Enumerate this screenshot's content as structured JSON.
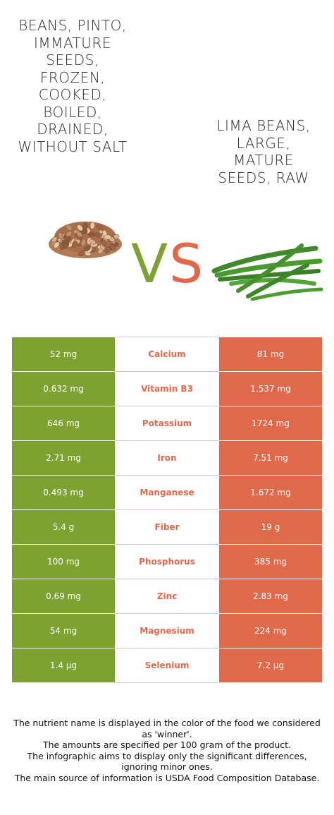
{
  "left_food": {
    "name": "Beans, pinto, immature seeds, frozen, cooked, boiled, drained, without salt",
    "color": "#7da232"
  },
  "right_food": {
    "name": "Lima beans, large, mature seeds, raw",
    "color": "#e0694c"
  },
  "vs": {
    "v": "V",
    "s": "S"
  },
  "nutrients": [
    {
      "name": "Calcium",
      "left": "52 mg",
      "right": "81 mg",
      "winner": "right"
    },
    {
      "name": "Vitamin B3",
      "left": "0.632 mg",
      "right": "1.537 mg",
      "winner": "right"
    },
    {
      "name": "Potassium",
      "left": "646 mg",
      "right": "1724 mg",
      "winner": "right"
    },
    {
      "name": "Iron",
      "left": "2.71 mg",
      "right": "7.51 mg",
      "winner": "right"
    },
    {
      "name": "Manganese",
      "left": "0.493 mg",
      "right": "1.672 mg",
      "winner": "right"
    },
    {
      "name": "Fiber",
      "left": "5.4 g",
      "right": "19 g",
      "winner": "right"
    },
    {
      "name": "Phosphorus",
      "left": "100 mg",
      "right": "385 mg",
      "winner": "right"
    },
    {
      "name": "Zinc",
      "left": "0.69 mg",
      "right": "2.83 mg",
      "winner": "right"
    },
    {
      "name": "Magnesium",
      "left": "54 mg",
      "right": "224 mg",
      "winner": "right"
    },
    {
      "name": "Selenium",
      "left": "1.4 µg",
      "right": "7.2 µg",
      "winner": "right"
    }
  ],
  "footnotes": [
    "The nutrient name is displayed in the color of the food we considered as 'winner'.",
    "The amounts are specified per 100 gram of the product.",
    "The infographic aims to display only the significant differences, ignoring minor ones.",
    "The main source of information is USDA Food Composition Database."
  ]
}
